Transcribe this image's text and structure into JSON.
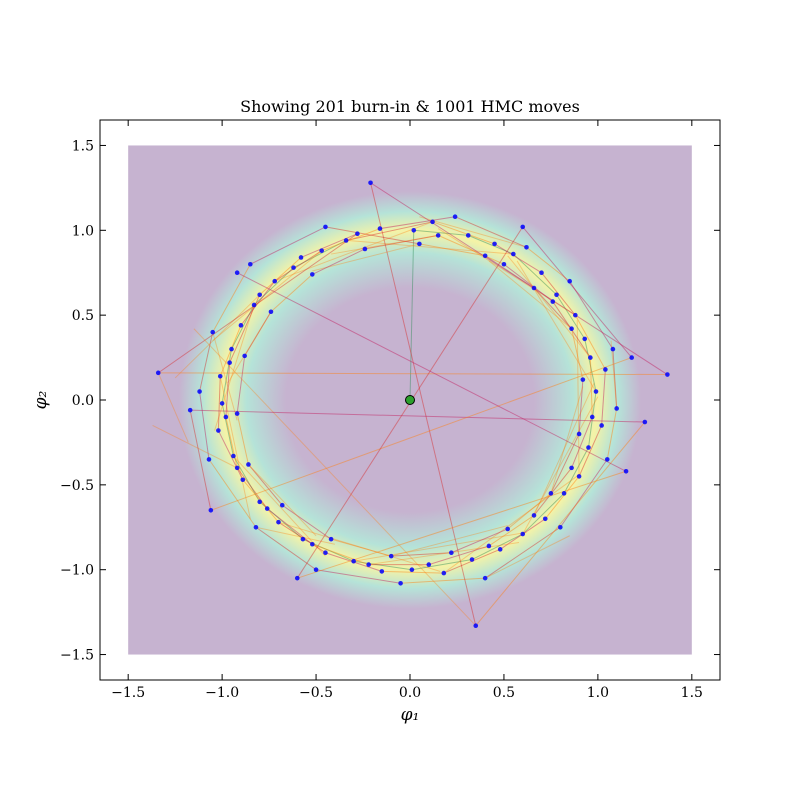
{
  "chart_data": {
    "type": "scatter",
    "title": "Showing 201 burn-in & 1001 HMC moves",
    "xlabel": "φ₁",
    "ylabel": "φ₂",
    "xlim": [
      -1.65,
      1.65
    ],
    "ylim": [
      -1.65,
      1.65
    ],
    "x_ticks": [
      -1.5,
      -1.0,
      -0.5,
      0.0,
      0.5,
      1.0,
      1.5
    ],
    "y_ticks": [
      -1.5,
      -1.0,
      -0.5,
      0.0,
      0.5,
      1.0,
      1.5
    ],
    "x_tick_labels": [
      "−1.5",
      "−1.0",
      "−0.5",
      "0.0",
      "0.5",
      "1.0",
      "1.5"
    ],
    "y_tick_labels": [
      "−1.5",
      "−1.0",
      "−0.5",
      "0.0",
      "0.5",
      "1.0",
      "1.5"
    ],
    "grid": false,
    "density_background": {
      "extent": [
        -1.5,
        1.5,
        -1.5,
        1.5
      ],
      "ring_radius": 1.0,
      "colors": {
        "low": "#c6b3d0",
        "mid": "#b5e3d8",
        "peak": "#f5f3a6"
      }
    },
    "start_point": {
      "x": 0.0,
      "y": 0.0,
      "color": "#2ca02c"
    },
    "sample_color": "#0000ff",
    "burn_in_path_color": "#2e8b57",
    "hmc_path_colors": [
      "#d62728",
      "#ff7f0e",
      "#c2185b"
    ],
    "samples": [
      {
        "x": 0.02,
        "y": 1.0
      },
      {
        "x": 0.31,
        "y": 0.97
      },
      {
        "x": 0.55,
        "y": 0.86
      },
      {
        "x": 0.78,
        "y": 0.62
      },
      {
        "x": 0.93,
        "y": 0.36
      },
      {
        "x": 0.99,
        "y": 0.05
      },
      {
        "x": 0.95,
        "y": -0.28
      },
      {
        "x": 0.82,
        "y": -0.55
      },
      {
        "x": 0.6,
        "y": -0.79
      },
      {
        "x": 0.33,
        "y": -0.94
      },
      {
        "x": 0.01,
        "y": -1.0
      },
      {
        "x": -0.3,
        "y": -0.95
      },
      {
        "x": -0.57,
        "y": -0.82
      },
      {
        "x": -0.8,
        "y": -0.6
      },
      {
        "x": -0.94,
        "y": -0.33
      },
      {
        "x": -1.0,
        "y": -0.02
      },
      {
        "x": -0.95,
        "y": 0.3
      },
      {
        "x": -0.83,
        "y": 0.56
      },
      {
        "x": -0.62,
        "y": 0.78
      },
      {
        "x": -0.34,
        "y": 0.94
      },
      {
        "x": 0.12,
        "y": 1.05
      },
      {
        "x": 0.45,
        "y": 0.92
      },
      {
        "x": 0.7,
        "y": 0.75
      },
      {
        "x": 0.88,
        "y": 0.5
      },
      {
        "x": 1.04,
        "y": 0.18
      },
      {
        "x": 1.02,
        "y": -0.15
      },
      {
        "x": 0.9,
        "y": -0.45
      },
      {
        "x": 0.72,
        "y": -0.7
      },
      {
        "x": 0.48,
        "y": -0.88
      },
      {
        "x": 0.18,
        "y": -1.02
      },
      {
        "x": -0.15,
        "y": -1.01
      },
      {
        "x": -0.45,
        "y": -0.9
      },
      {
        "x": -0.7,
        "y": -0.72
      },
      {
        "x": -0.89,
        "y": -0.47
      },
      {
        "x": -1.02,
        "y": -0.18
      },
      {
        "x": -1.01,
        "y": 0.14
      },
      {
        "x": -0.9,
        "y": 0.44
      },
      {
        "x": -0.72,
        "y": 0.7
      },
      {
        "x": -0.47,
        "y": 0.88
      },
      {
        "x": -0.16,
        "y": 1.01
      },
      {
        "x": 0.24,
        "y": 1.08
      },
      {
        "x": 0.62,
        "y": 0.9
      },
      {
        "x": 0.85,
        "y": 0.7
      },
      {
        "x": 1.08,
        "y": 0.3
      },
      {
        "x": 1.1,
        "y": -0.05
      },
      {
        "x": 1.05,
        "y": -0.35
      },
      {
        "x": 0.8,
        "y": -0.75
      },
      {
        "x": 0.4,
        "y": -1.05
      },
      {
        "x": -0.05,
        "y": -1.08
      },
      {
        "x": -0.5,
        "y": -1.0
      },
      {
        "x": -0.82,
        "y": -0.75
      },
      {
        "x": -1.07,
        "y": -0.35
      },
      {
        "x": -1.12,
        "y": 0.05
      },
      {
        "x": -1.05,
        "y": 0.4
      },
      {
        "x": -0.85,
        "y": 0.8
      },
      {
        "x": -0.45,
        "y": 1.02
      },
      {
        "x": 0.05,
        "y": 0.92
      },
      {
        "x": 0.4,
        "y": 0.85
      },
      {
        "x": 0.66,
        "y": 0.66
      },
      {
        "x": 0.86,
        "y": 0.42
      },
      {
        "x": 0.92,
        "y": 0.12
      },
      {
        "x": 0.9,
        "y": -0.2
      },
      {
        "x": 0.75,
        "y": -0.55
      },
      {
        "x": 0.52,
        "y": -0.76
      },
      {
        "x": 0.22,
        "y": -0.9
      },
      {
        "x": -0.1,
        "y": -0.92
      },
      {
        "x": -0.42,
        "y": -0.82
      },
      {
        "x": -0.68,
        "y": -0.62
      },
      {
        "x": -0.86,
        "y": -0.38
      },
      {
        "x": -0.92,
        "y": -0.08
      },
      {
        "x": -0.88,
        "y": 0.26
      },
      {
        "x": -0.74,
        "y": 0.52
      },
      {
        "x": -0.52,
        "y": 0.74
      },
      {
        "x": -0.24,
        "y": 0.89
      },
      {
        "x": 0.15,
        "y": 0.97
      },
      {
        "x": 0.5,
        "y": 0.8
      },
      {
        "x": 0.76,
        "y": 0.58
      },
      {
        "x": 0.96,
        "y": 0.25
      },
      {
        "x": 0.97,
        "y": -0.1
      },
      {
        "x": 0.86,
        "y": -0.4
      },
      {
        "x": 0.66,
        "y": -0.68
      },
      {
        "x": 0.42,
        "y": -0.86
      },
      {
        "x": 0.1,
        "y": -0.97
      },
      {
        "x": -0.22,
        "y": -0.97
      },
      {
        "x": -0.52,
        "y": -0.85
      },
      {
        "x": -0.76,
        "y": -0.64
      },
      {
        "x": -0.92,
        "y": -0.4
      },
      {
        "x": -0.98,
        "y": -0.1
      },
      {
        "x": -0.96,
        "y": 0.22
      },
      {
        "x": -0.8,
        "y": 0.62
      },
      {
        "x": -0.58,
        "y": 0.84
      },
      {
        "x": -0.28,
        "y": 0.98
      },
      {
        "x": -1.34,
        "y": 0.16
      },
      {
        "x": 1.37,
        "y": 0.15
      },
      {
        "x": -0.21,
        "y": 1.28
      },
      {
        "x": 0.35,
        "y": -1.33
      },
      {
        "x": 1.25,
        "y": -0.13
      },
      {
        "x": -1.17,
        "y": -0.06
      },
      {
        "x": -1.06,
        "y": -0.65
      },
      {
        "x": 1.18,
        "y": 0.25
      },
      {
        "x": 0.6,
        "y": 1.02
      },
      {
        "x": -0.6,
        "y": -1.05
      },
      {
        "x": 1.15,
        "y": -0.42
      },
      {
        "x": -0.92,
        "y": 0.75
      }
    ],
    "chain_path_order": "samples in listed order, starting at start_point"
  }
}
